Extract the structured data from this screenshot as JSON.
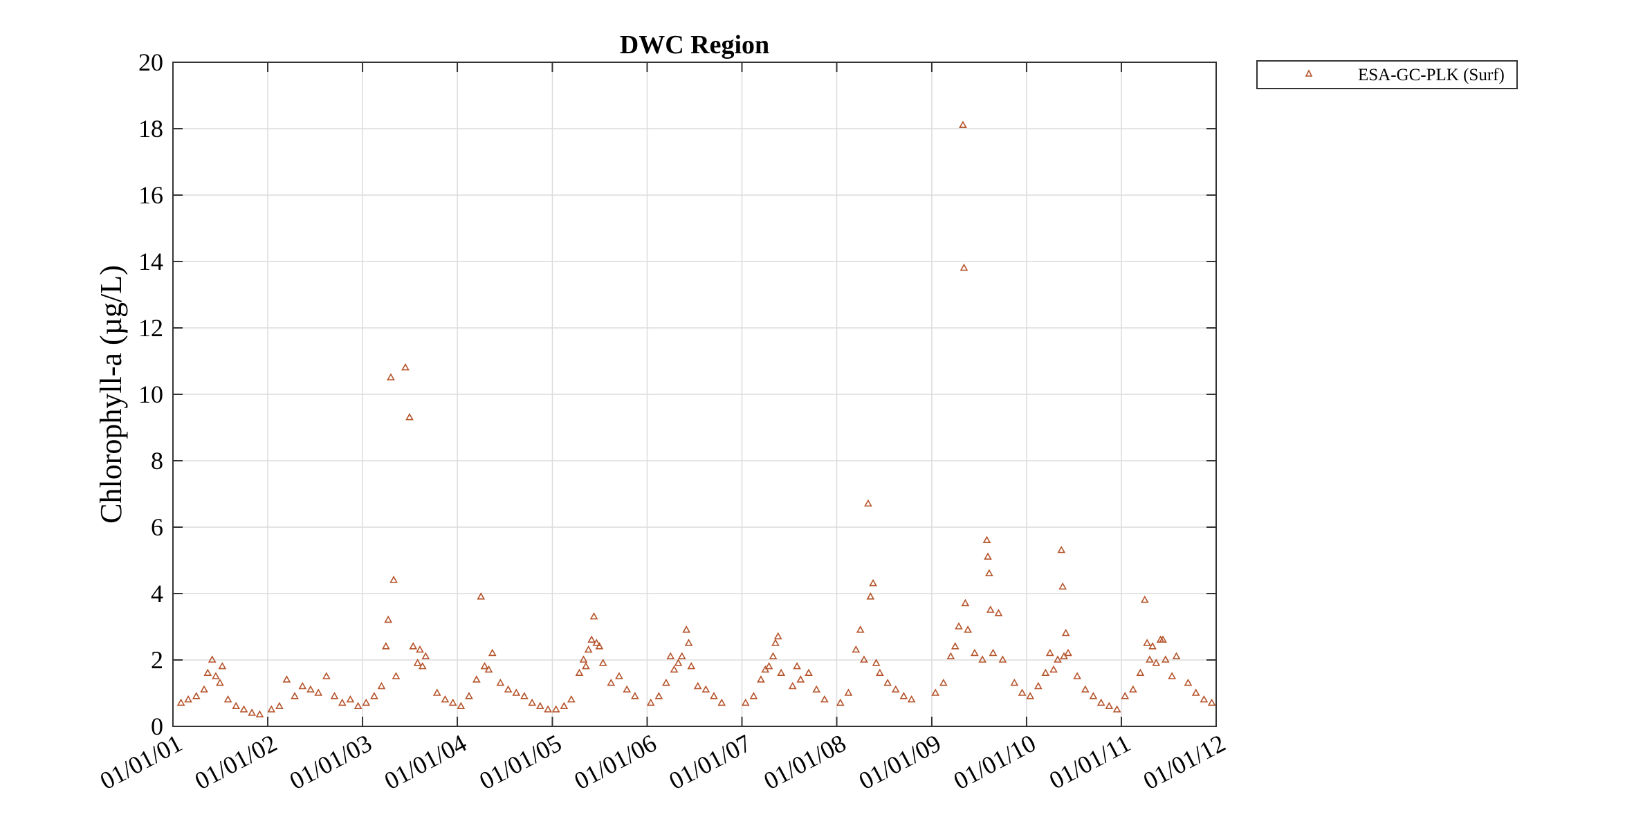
{
  "chart_data": {
    "type": "scatter",
    "title": "DWC Region",
    "xlabel": "",
    "ylabel": "Chlorophyll-a (µg/L)",
    "ylim": [
      0,
      20
    ],
    "yticks": [
      "0",
      "2",
      "4",
      "6",
      "8",
      "10",
      "12",
      "14",
      "16",
      "18",
      "20"
    ],
    "xlim": [
      "2001-01-01",
      "2012-01-01"
    ],
    "xticks": [
      "01/01/01",
      "01/01/02",
      "01/01/03",
      "01/01/04",
      "01/01/05",
      "01/01/06",
      "01/01/07",
      "01/01/08",
      "01/01/09",
      "01/01/10",
      "01/01/11",
      "01/01/12"
    ],
    "grid": true,
    "legend_position": "outside top-right",
    "colors": {
      "marker": "#b5532a",
      "grid": "#dcdcdc",
      "axis": "#333333"
    },
    "series": [
      {
        "name": "ESA-GC-PLK (Surf)",
        "marker": "triangle",
        "points": [
          [
            "2001-02-01",
            0.7
          ],
          [
            "2001-03-01",
            0.8
          ],
          [
            "2001-04-01",
            0.9
          ],
          [
            "2001-05-01",
            1.1
          ],
          [
            "2001-05-15",
            1.6
          ],
          [
            "2001-06-01",
            2.0
          ],
          [
            "2001-06-15",
            1.5
          ],
          [
            "2001-07-01",
            1.3
          ],
          [
            "2001-07-10",
            1.8
          ],
          [
            "2001-08-01",
            0.8
          ],
          [
            "2001-09-01",
            0.6
          ],
          [
            "2001-10-01",
            0.5
          ],
          [
            "2001-11-01",
            0.4
          ],
          [
            "2001-12-01",
            0.35
          ],
          [
            "2002-01-15",
            0.5
          ],
          [
            "2002-02-15",
            0.6
          ],
          [
            "2002-03-15",
            1.4
          ],
          [
            "2002-04-15",
            0.9
          ],
          [
            "2002-05-15",
            1.2
          ],
          [
            "2002-06-15",
            1.1
          ],
          [
            "2002-07-15",
            1.0
          ],
          [
            "2002-08-15",
            1.5
          ],
          [
            "2002-09-15",
            0.9
          ],
          [
            "2002-10-15",
            0.7
          ],
          [
            "2002-11-15",
            0.8
          ],
          [
            "2002-12-15",
            0.6
          ],
          [
            "2003-01-15",
            0.7
          ],
          [
            "2003-02-15",
            0.9
          ],
          [
            "2003-03-15",
            1.2
          ],
          [
            "2003-04-01",
            2.4
          ],
          [
            "2003-04-10",
            3.2
          ],
          [
            "2003-04-20",
            10.5
          ],
          [
            "2003-05-01",
            4.4
          ],
          [
            "2003-05-10",
            1.5
          ],
          [
            "2003-06-15",
            10.8
          ],
          [
            "2003-07-01",
            9.3
          ],
          [
            "2003-07-15",
            2.4
          ],
          [
            "2003-08-01",
            1.9
          ],
          [
            "2003-08-10",
            2.3
          ],
          [
            "2003-08-20",
            1.8
          ],
          [
            "2003-09-01",
            2.1
          ],
          [
            "2003-10-15",
            1.0
          ],
          [
            "2003-11-15",
            0.8
          ],
          [
            "2003-12-15",
            0.7
          ],
          [
            "2004-01-15",
            0.6
          ],
          [
            "2004-02-15",
            0.9
          ],
          [
            "2004-03-15",
            1.4
          ],
          [
            "2004-04-01",
            3.9
          ],
          [
            "2004-04-15",
            1.8
          ],
          [
            "2004-05-01",
            1.7
          ],
          [
            "2004-05-15",
            2.2
          ],
          [
            "2004-06-15",
            1.3
          ],
          [
            "2004-07-15",
            1.1
          ],
          [
            "2004-08-15",
            1.0
          ],
          [
            "2004-09-15",
            0.9
          ],
          [
            "2004-10-15",
            0.7
          ],
          [
            "2004-11-15",
            0.6
          ],
          [
            "2004-12-15",
            0.5
          ],
          [
            "2005-01-15",
            0.5
          ],
          [
            "2005-02-15",
            0.6
          ],
          [
            "2005-03-15",
            0.8
          ],
          [
            "2005-04-15",
            1.6
          ],
          [
            "2005-05-01",
            2.0
          ],
          [
            "2005-05-10",
            1.8
          ],
          [
            "2005-05-20",
            2.3
          ],
          [
            "2005-06-01",
            2.6
          ],
          [
            "2005-06-10",
            3.3
          ],
          [
            "2005-06-20",
            2.5
          ],
          [
            "2005-07-01",
            2.4
          ],
          [
            "2005-07-15",
            1.9
          ],
          [
            "2005-08-15",
            1.3
          ],
          [
            "2005-09-15",
            1.5
          ],
          [
            "2005-10-15",
            1.1
          ],
          [
            "2005-11-15",
            0.9
          ],
          [
            "2006-01-15",
            0.7
          ],
          [
            "2006-02-15",
            0.9
          ],
          [
            "2006-03-15",
            1.3
          ],
          [
            "2006-04-01",
            2.1
          ],
          [
            "2006-04-15",
            1.7
          ],
          [
            "2006-05-01",
            1.9
          ],
          [
            "2006-05-15",
            2.1
          ],
          [
            "2006-06-01",
            2.9
          ],
          [
            "2006-06-10",
            2.5
          ],
          [
            "2006-06-20",
            1.8
          ],
          [
            "2006-07-15",
            1.2
          ],
          [
            "2006-08-15",
            1.1
          ],
          [
            "2006-09-15",
            0.9
          ],
          [
            "2006-10-15",
            0.7
          ],
          [
            "2007-01-15",
            0.7
          ],
          [
            "2007-02-15",
            0.9
          ],
          [
            "2007-03-15",
            1.4
          ],
          [
            "2007-04-01",
            1.7
          ],
          [
            "2007-04-15",
            1.8
          ],
          [
            "2007-05-01",
            2.1
          ],
          [
            "2007-05-10",
            2.5
          ],
          [
            "2007-05-20",
            2.7
          ],
          [
            "2007-06-01",
            1.6
          ],
          [
            "2007-07-15",
            1.2
          ],
          [
            "2007-08-01",
            1.8
          ],
          [
            "2007-08-15",
            1.4
          ],
          [
            "2007-09-15",
            1.6
          ],
          [
            "2007-10-15",
            1.1
          ],
          [
            "2007-11-15",
            0.8
          ],
          [
            "2008-01-15",
            0.7
          ],
          [
            "2008-02-15",
            1.0
          ],
          [
            "2008-03-15",
            2.3
          ],
          [
            "2008-04-01",
            2.9
          ],
          [
            "2008-04-15",
            2.0
          ],
          [
            "2008-05-01",
            6.7
          ],
          [
            "2008-05-10",
            3.9
          ],
          [
            "2008-05-20",
            4.3
          ],
          [
            "2008-06-01",
            1.9
          ],
          [
            "2008-06-15",
            1.6
          ],
          [
            "2008-07-15",
            1.3
          ],
          [
            "2008-08-15",
            1.1
          ],
          [
            "2008-09-15",
            0.9
          ],
          [
            "2008-10-15",
            0.8
          ],
          [
            "2009-01-15",
            1.0
          ],
          [
            "2009-02-15",
            1.3
          ],
          [
            "2009-03-15",
            2.1
          ],
          [
            "2009-04-01",
            2.4
          ],
          [
            "2009-04-15",
            3.0
          ],
          [
            "2009-05-01",
            18.1
          ],
          [
            "2009-05-05",
            13.8
          ],
          [
            "2009-05-10",
            3.7
          ],
          [
            "2009-05-20",
            2.9
          ],
          [
            "2009-06-15",
            2.2
          ],
          [
            "2009-07-15",
            2.0
          ],
          [
            "2009-08-01",
            5.6
          ],
          [
            "2009-08-05",
            5.1
          ],
          [
            "2009-08-10",
            4.6
          ],
          [
            "2009-08-15",
            3.5
          ],
          [
            "2009-08-25",
            2.2
          ],
          [
            "2009-09-15",
            3.4
          ],
          [
            "2009-10-01",
            2.0
          ],
          [
            "2009-11-15",
            1.3
          ],
          [
            "2009-12-15",
            1.0
          ],
          [
            "2010-01-15",
            0.9
          ],
          [
            "2010-02-15",
            1.2
          ],
          [
            "2010-03-15",
            1.6
          ],
          [
            "2010-04-01",
            2.2
          ],
          [
            "2010-04-15",
            1.7
          ],
          [
            "2010-05-01",
            2.0
          ],
          [
            "2010-05-15",
            5.3
          ],
          [
            "2010-05-20",
            4.2
          ],
          [
            "2010-05-25",
            2.1
          ],
          [
            "2010-06-01",
            2.8
          ],
          [
            "2010-06-10",
            2.2
          ],
          [
            "2010-07-15",
            1.5
          ],
          [
            "2010-08-15",
            1.1
          ],
          [
            "2010-09-15",
            0.9
          ],
          [
            "2010-10-15",
            0.7
          ],
          [
            "2010-11-15",
            0.6
          ],
          [
            "2010-12-15",
            0.5
          ],
          [
            "2011-01-15",
            0.9
          ],
          [
            "2011-02-15",
            1.1
          ],
          [
            "2011-03-15",
            1.6
          ],
          [
            "2011-04-01",
            3.8
          ],
          [
            "2011-04-10",
            2.5
          ],
          [
            "2011-04-20",
            2.0
          ],
          [
            "2011-05-01",
            2.4
          ],
          [
            "2011-05-15",
            1.9
          ],
          [
            "2011-06-01",
            2.6
          ],
          [
            "2011-06-10",
            2.6
          ],
          [
            "2011-06-20",
            2.0
          ],
          [
            "2011-07-15",
            1.5
          ],
          [
            "2011-08-01",
            2.1
          ],
          [
            "2011-09-15",
            1.3
          ],
          [
            "2011-10-15",
            1.0
          ],
          [
            "2011-11-15",
            0.8
          ],
          [
            "2011-12-15",
            0.7
          ]
        ]
      }
    ]
  }
}
